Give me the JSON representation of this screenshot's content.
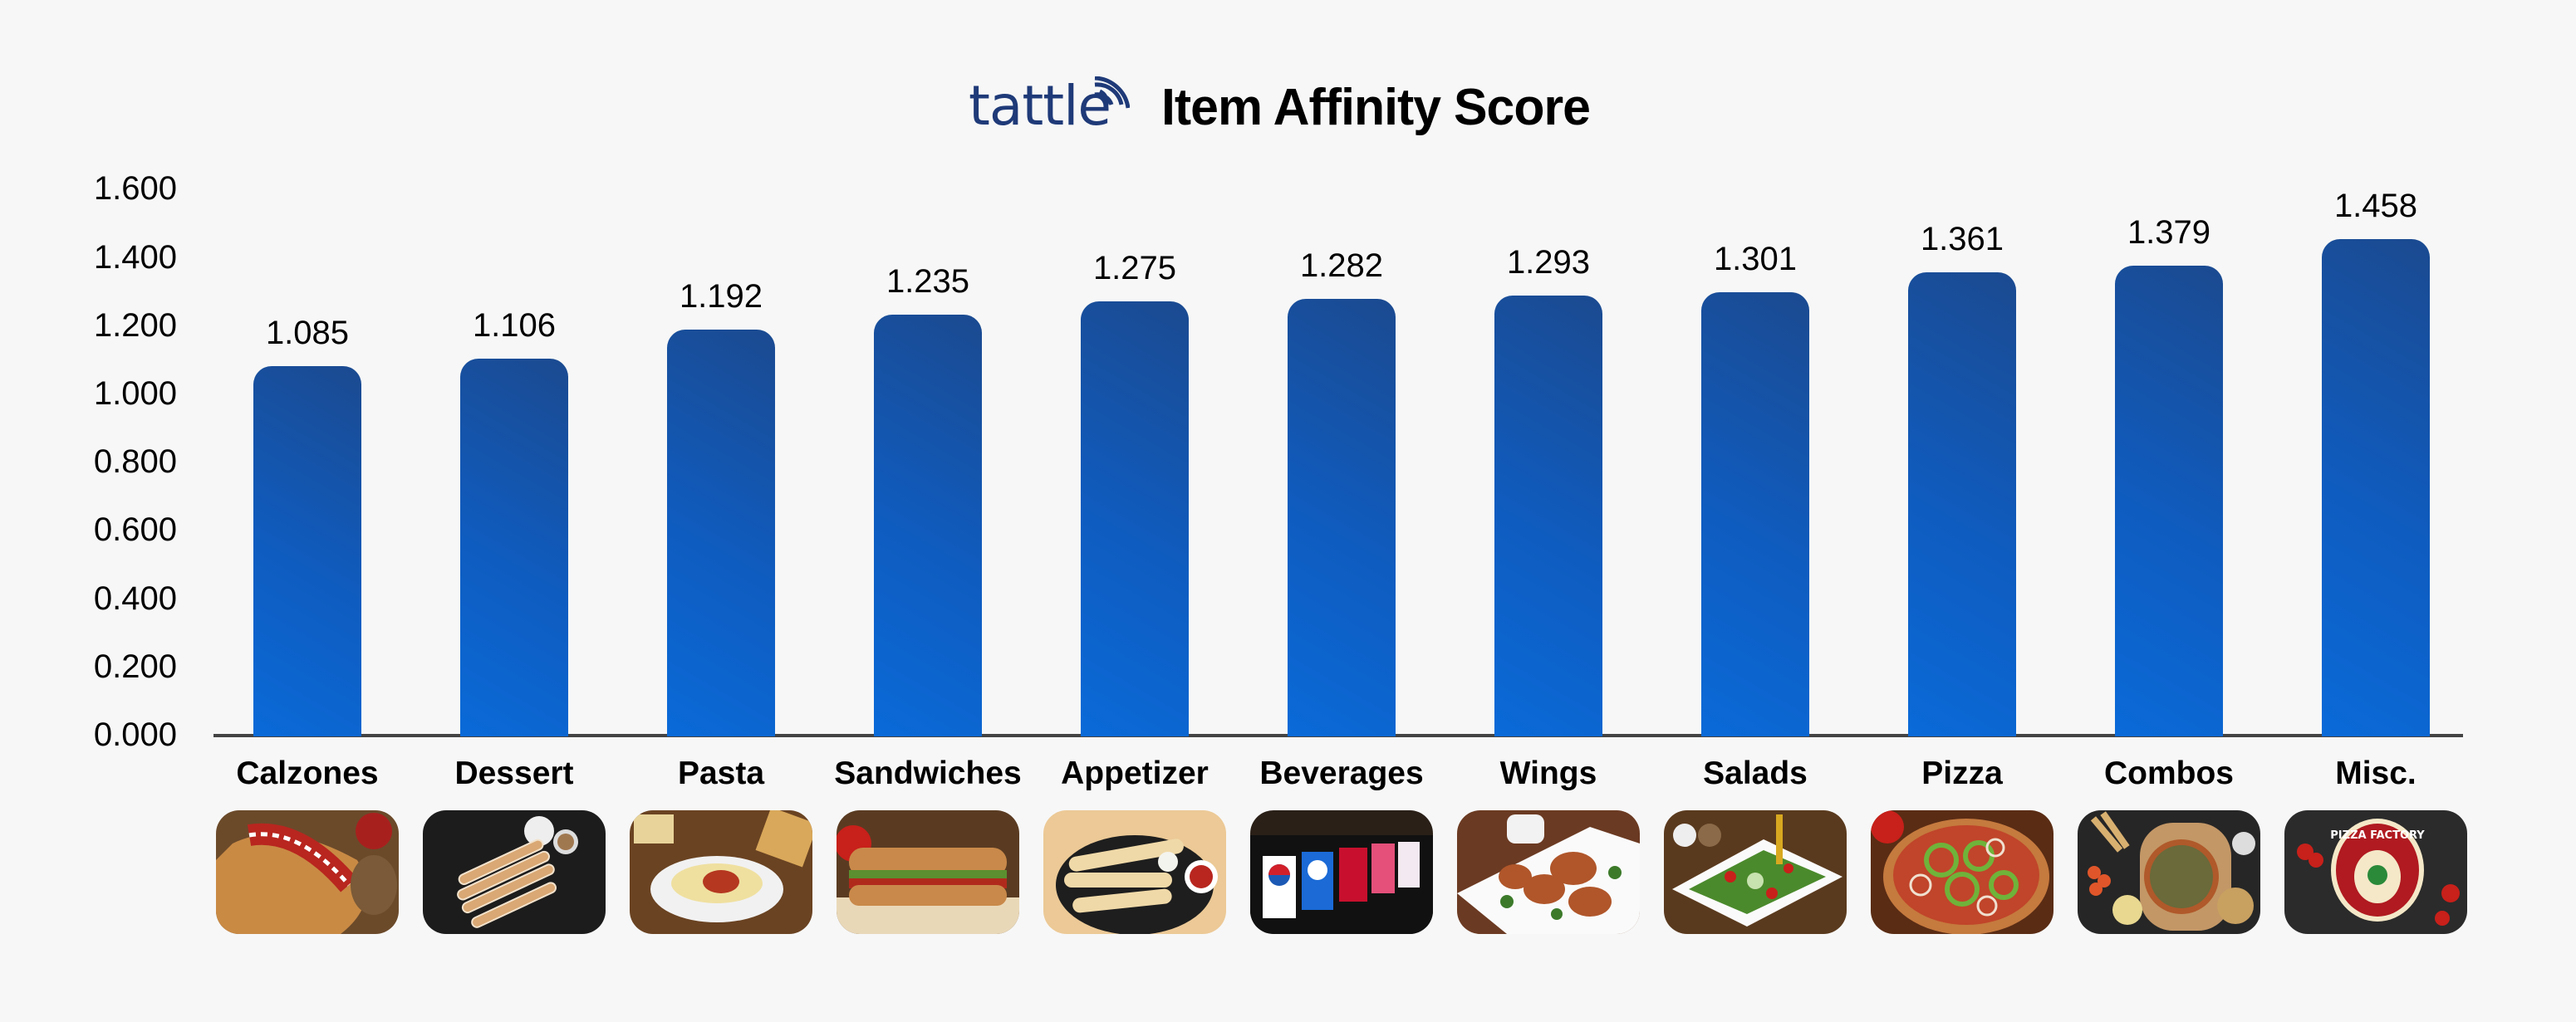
{
  "header": {
    "logo_text": "tattle",
    "title": "Item Affinity Score"
  },
  "colors": {
    "background": "#f7f7f7",
    "bar_light": "#0a6ad8",
    "bar_dark": "#1b4a90",
    "logo": "#1f3a78",
    "axis": "#444444"
  },
  "y_axis": {
    "ticks": [
      "0.000",
      "0.200",
      "0.400",
      "0.600",
      "0.800",
      "1.000",
      "1.200",
      "1.400",
      "1.600"
    ]
  },
  "categories": [
    {
      "label": "Calzones",
      "value_label": "1.085",
      "image": "calzone-photo"
    },
    {
      "label": "Dessert",
      "value_label": "1.106",
      "image": "dessert-sticks-photo"
    },
    {
      "label": "Pasta",
      "value_label": "1.192",
      "image": "pasta-bowl-photo"
    },
    {
      "label": "Sandwiches",
      "value_label": "1.235",
      "image": "sandwich-photo"
    },
    {
      "label": "Appetizer",
      "value_label": "1.275",
      "image": "breadsticks-photo"
    },
    {
      "label": "Beverages",
      "value_label": "1.282",
      "image": "soda-fountain-photo"
    },
    {
      "label": "Wings",
      "value_label": "1.293",
      "image": "wings-photo"
    },
    {
      "label": "Salads",
      "value_label": "1.301",
      "image": "salad-photo"
    },
    {
      "label": "Pizza",
      "value_label": "1.361",
      "image": "pizza-photo"
    },
    {
      "label": "Combos",
      "value_label": "1.379",
      "image": "combo-spread-photo"
    },
    {
      "label": "Misc.",
      "value_label": "1.458",
      "image": "pizza-factory-logo-photo"
    }
  ],
  "chart_data": {
    "type": "bar",
    "title": "Item Affinity Score",
    "categories": [
      "Calzones",
      "Dessert",
      "Pasta",
      "Sandwiches",
      "Appetizer",
      "Beverages",
      "Wings",
      "Salads",
      "Pizza",
      "Combos",
      "Misc."
    ],
    "values": [
      1.085,
      1.106,
      1.192,
      1.235,
      1.275,
      1.282,
      1.293,
      1.301,
      1.361,
      1.379,
      1.458
    ],
    "xlabel": "",
    "ylabel": "",
    "ylim": [
      0,
      1.6
    ],
    "yticks": [
      0,
      0.2,
      0.4,
      0.6,
      0.8,
      1.0,
      1.2,
      1.4,
      1.6
    ],
    "grid": false,
    "legend": null,
    "data_labels": true,
    "sort": "ascending"
  }
}
